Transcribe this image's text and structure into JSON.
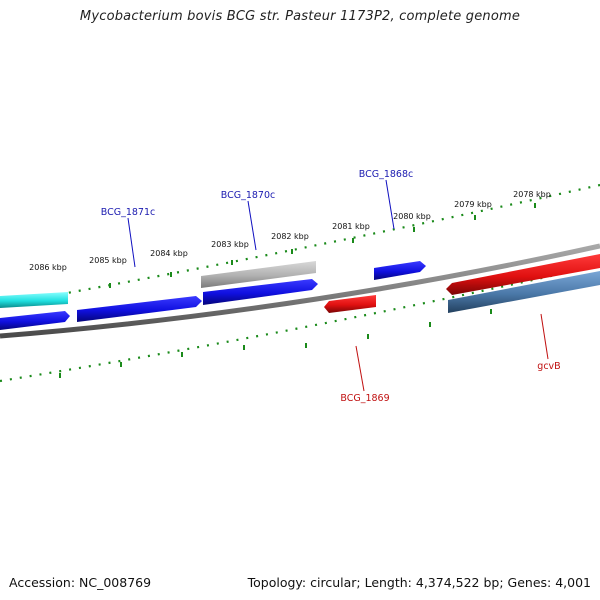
{
  "title": "Mycobacterium bovis BCG str. Pasteur 1173P2, complete genome",
  "footer": {
    "accession": "Accession: NC_008769",
    "topology": "Topology: circular; Length: 4,374,522 bp; Genes: 4,001"
  },
  "colors": {
    "forward_gene": "#1010e0",
    "reverse_gene": "#e01010",
    "pseudo_gene": "#b0b0b0",
    "cyan_gene": "#20e0e0",
    "steel_gene": "#4a78a8",
    "tick": "#1a8a1a",
    "backbone": "#808080"
  },
  "ticks": [
    "2086 kbp",
    "2085 kbp",
    "2084 kbp",
    "2083 kbp",
    "2082 kbp",
    "2081 kbp",
    "2080 kbp",
    "2079 kbp",
    "2078 kbp"
  ],
  "gene_labels": [
    {
      "name": "BCG_1871c",
      "strand": "forward"
    },
    {
      "name": "BCG_1870c",
      "strand": "forward"
    },
    {
      "name": "BCG_1868c",
      "strand": "forward"
    },
    {
      "name": "BCG_1869",
      "strand": "reverse"
    },
    {
      "name": "gcvB",
      "strand": "reverse"
    }
  ]
}
